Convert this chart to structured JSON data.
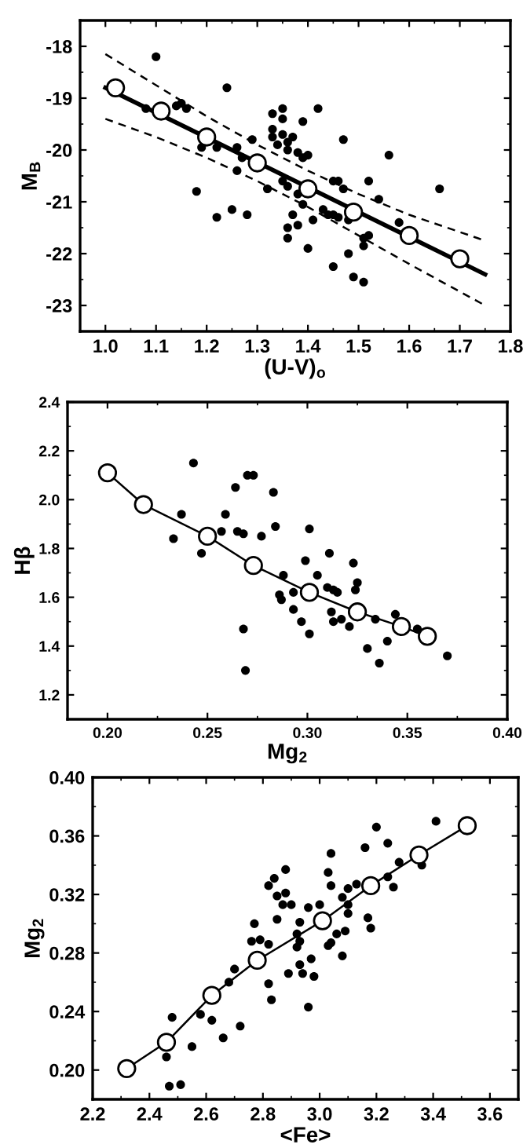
{
  "chart_data": [
    {
      "type": "scatter",
      "xlabel": "(U-V)$_{o}$",
      "ylabel": "M$_{B}$",
      "xlim": [
        0.95,
        1.8
      ],
      "ylim": [
        -23.5,
        -17.5
      ],
      "xticks": [
        {
          "value": 1.0,
          "label": "1.0"
        },
        1.1,
        1.2,
        1.3,
        1.4,
        1.5,
        1.6,
        1.7,
        1.8
      ],
      "yticks": [
        -18,
        -19,
        -20,
        -21,
        -22,
        -23
      ],
      "grid": false,
      "legend": false,
      "series": [
        {
          "marker": "circle",
          "color": "#000000",
          "x": [
            1.1,
            1.08,
            1.14,
            1.15,
            1.16,
            1.24,
            1.18,
            1.19,
            1.22,
            1.22,
            1.25,
            1.28,
            1.26,
            1.26,
            1.27,
            1.29,
            1.32,
            1.33,
            1.33,
            1.33,
            1.34,
            1.35,
            1.35,
            1.35,
            1.36,
            1.37,
            1.36,
            1.35,
            1.36,
            1.37,
            1.36,
            1.36,
            1.38,
            1.39,
            1.4,
            1.39,
            1.38,
            1.39,
            1.38,
            1.42,
            1.4,
            1.41,
            1.43,
            1.44,
            1.45,
            1.46,
            1.45,
            1.46,
            1.47,
            1.47,
            1.45,
            1.48,
            1.48,
            1.49,
            1.51,
            1.51,
            1.52,
            1.51,
            1.52,
            1.54,
            1.56,
            1.58,
            1.66
          ],
          "values": [
            -18.2,
            -19.2,
            -19.15,
            -19.1,
            -19.2,
            -18.8,
            -20.8,
            -19.95,
            -19.95,
            -21.3,
            -21.15,
            -21.25,
            -20.4,
            -19.95,
            -20.15,
            -19.8,
            -20.75,
            -19.3,
            -19.6,
            -19.75,
            -19.9,
            -19.2,
            -19.4,
            -19.7,
            -19.85,
            -19.75,
            -20.0,
            -20.6,
            -20.7,
            -21.25,
            -21.5,
            -21.7,
            -20.05,
            -20.15,
            -20.1,
            -19.45,
            -20.85,
            -21.05,
            -21.45,
            -19.2,
            -21.9,
            -21.35,
            -21.15,
            -21.25,
            -21.25,
            -21.3,
            -20.6,
            -20.6,
            -20.75,
            -19.8,
            -22.25,
            -22.0,
            -21.35,
            -22.45,
            -22.55,
            -21.85,
            -21.65,
            -21.7,
            -20.6,
            -20.95,
            -20.1,
            -21.4,
            -20.75
          ]
        },
        {
          "type": "line",
          "marker": "none",
          "line_style": "solid",
          "color": "#000000",
          "x": [
            1.0,
            1.75
          ],
          "values": [
            -18.8,
            -22.4
          ]
        },
        {
          "type": "line",
          "marker": "none",
          "line_style": "dashed",
          "color": "#000000",
          "x": [
            1.0,
            1.1,
            1.2,
            1.3,
            1.4,
            1.5,
            1.6,
            1.75
          ],
          "values": [
            -18.15,
            -18.75,
            -19.35,
            -19.9,
            -20.4,
            -20.85,
            -21.25,
            -21.75
          ]
        },
        {
          "type": "line",
          "marker": "none",
          "line_style": "dashed",
          "color": "#000000",
          "x": [
            1.0,
            1.1,
            1.2,
            1.3,
            1.4,
            1.5,
            1.6,
            1.75
          ],
          "values": [
            -19.4,
            -19.75,
            -20.15,
            -20.6,
            -21.1,
            -21.65,
            -22.2,
            -23.0
          ]
        },
        {
          "type": "scatter",
          "marker": "circle",
          "color": "#ffffff",
          "x": [
            1.02,
            1.11,
            1.2,
            1.3,
            1.4,
            1.49,
            1.6,
            1.7
          ],
          "values": [
            -18.8,
            -19.25,
            -19.75,
            -20.25,
            -20.75,
            -21.2,
            -21.65,
            -22.1
          ]
        }
      ]
    },
    {
      "type": "scatter",
      "xlabel": "Mg$_{2}$",
      "ylabel": "Hβ",
      "xlim": [
        0.18,
        0.4
      ],
      "ylim": [
        1.1,
        2.4
      ],
      "xticks": [
        {
          "value": 0.2,
          "label": "0.20"
        },
        0.25,
        {
          "value": 0.3,
          "label": "0.30"
        },
        0.35,
        {
          "value": 0.4,
          "label": "0.40"
        }
      ],
      "yticks": [
        1.2,
        1.4,
        1.6,
        1.8,
        {
          "value": 2.0,
          "label": "2.0"
        },
        2.2,
        2.4
      ],
      "grid": false,
      "legend": false,
      "series": [
        {
          "marker": "circle",
          "color": "#000000",
          "x": [
            0.243,
            0.237,
            0.233,
            0.247,
            0.257,
            0.259,
            0.264,
            0.265,
            0.268,
            0.27,
            0.273,
            0.268,
            0.269,
            0.277,
            0.283,
            0.284,
            0.286,
            0.287,
            0.288,
            0.293,
            0.293,
            0.297,
            0.299,
            0.301,
            0.301,
            0.305,
            0.311,
            0.31,
            0.313,
            0.315,
            0.312,
            0.313,
            0.317,
            0.321,
            0.323,
            0.324,
            0.325,
            0.33,
            0.334,
            0.336,
            0.34,
            0.344,
            0.355,
            0.37
          ],
          "values": [
            2.15,
            1.94,
            1.84,
            1.78,
            1.87,
            1.94,
            2.05,
            1.87,
            1.86,
            2.1,
            2.1,
            1.47,
            1.3,
            1.85,
            2.03,
            1.89,
            1.61,
            1.59,
            1.69,
            1.62,
            1.55,
            1.5,
            1.75,
            1.88,
            1.45,
            1.69,
            1.78,
            1.64,
            1.63,
            1.62,
            1.54,
            1.5,
            1.51,
            1.48,
            1.74,
            1.63,
            1.66,
            1.39,
            1.51,
            1.33,
            1.42,
            1.53,
            1.47,
            1.36
          ]
        },
        {
          "type": "line",
          "marker": "none",
          "line_style": "solid",
          "color": "#000000",
          "x": [
            0.2,
            0.218,
            0.25,
            0.273,
            0.301,
            0.325,
            0.347,
            0.36
          ],
          "values": [
            2.11,
            1.98,
            1.85,
            1.73,
            1.62,
            1.54,
            1.48,
            1.44
          ]
        },
        {
          "type": "scatter",
          "marker": "circle",
          "color": "#ffffff",
          "x": [
            0.2,
            0.218,
            0.25,
            0.273,
            0.301,
            0.325,
            0.347,
            0.36
          ],
          "values": [
            2.11,
            1.98,
            1.85,
            1.73,
            1.62,
            1.54,
            1.48,
            1.44
          ]
        }
      ]
    },
    {
      "type": "scatter",
      "xlabel": "<Fe>",
      "ylabel": "Mg$_{2}$",
      "xlim": [
        2.2,
        3.7
      ],
      "ylim": [
        0.18,
        0.4
      ],
      "xticks": [
        2.2,
        2.4,
        2.6,
        2.8,
        {
          "value": 3.0,
          "label": "3.0"
        },
        3.2,
        3.4,
        3.6
      ],
      "yticks": [
        {
          "value": 0.2,
          "label": "0.20"
        },
        {
          "value": 0.24,
          "label": "0.24"
        },
        {
          "value": 0.28,
          "label": "0.28"
        },
        {
          "value": 0.32,
          "label": "0.32"
        },
        {
          "value": 0.36,
          "label": "0.36"
        },
        {
          "value": 0.4,
          "label": "0.40"
        }
      ],
      "grid": false,
      "legend": false,
      "series": [
        {
          "marker": "circle",
          "color": "#000000",
          "x": [
            2.47,
            2.51,
            2.46,
            2.48,
            2.55,
            2.58,
            2.62,
            2.66,
            2.72,
            2.68,
            2.7,
            2.77,
            2.76,
            2.79,
            2.82,
            2.82,
            2.83,
            2.82,
            2.84,
            2.88,
            2.85,
            2.87,
            2.85,
            2.88,
            2.89,
            2.9,
            2.92,
            2.93,
            2.93,
            2.92,
            2.93,
            2.94,
            2.96,
            2.98,
            2.97,
            2.96,
            3.0,
            3.03,
            3.04,
            3.04,
            3.03,
            3.04,
            3.06,
            3.08,
            3.09,
            3.1,
            3.1,
            3.1,
            3.08,
            3.13,
            3.16,
            3.17,
            3.18,
            3.2,
            3.24,
            3.24,
            3.26,
            3.28,
            3.36,
            3.41
          ],
          "values": [
            0.189,
            0.19,
            0.209,
            0.236,
            0.216,
            0.238,
            0.234,
            0.222,
            0.23,
            0.26,
            0.269,
            0.3,
            0.288,
            0.289,
            0.286,
            0.259,
            0.248,
            0.326,
            0.331,
            0.337,
            0.319,
            0.313,
            0.303,
            0.321,
            0.266,
            0.313,
            0.293,
            0.301,
            0.288,
            0.284,
            0.272,
            0.266,
            0.311,
            0.264,
            0.276,
            0.243,
            0.313,
            0.335,
            0.326,
            0.348,
            0.285,
            0.287,
            0.293,
            0.318,
            0.295,
            0.313,
            0.324,
            0.307,
            0.278,
            0.327,
            0.352,
            0.304,
            0.297,
            0.366,
            0.355,
            0.332,
            0.325,
            0.342,
            0.34,
            0.37
          ]
        },
        {
          "type": "line",
          "marker": "none",
          "line_style": "solid",
          "color": "#000000",
          "x": [
            2.32,
            2.46,
            2.62,
            2.78,
            3.01,
            3.18,
            3.35,
            3.52
          ],
          "values": [
            0.201,
            0.219,
            0.251,
            0.275,
            0.302,
            0.326,
            0.347,
            0.367
          ]
        },
        {
          "type": "scatter",
          "marker": "circle",
          "color": "#ffffff",
          "x": [
            2.32,
            2.46,
            2.62,
            2.78,
            3.01,
            3.18,
            3.35,
            3.52
          ],
          "values": [
            0.201,
            0.219,
            0.251,
            0.275,
            0.302,
            0.326,
            0.347,
            0.367
          ]
        }
      ]
    }
  ]
}
